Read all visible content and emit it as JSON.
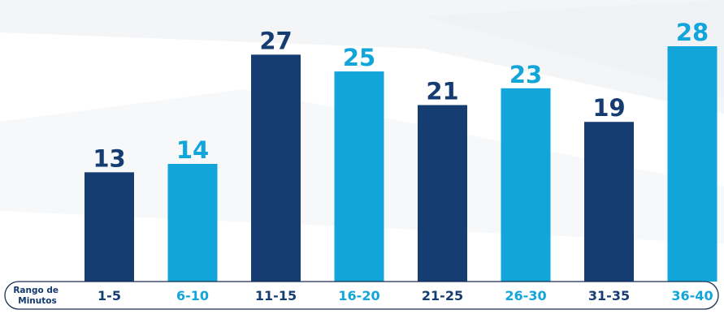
{
  "colors": {
    "dark": "#153d72",
    "light": "#12a5da",
    "background": "#ffffff",
    "pill_border": "#1a2f55"
  },
  "chart_data": {
    "type": "bar",
    "axis_title_lines": [
      "Rango de",
      "Minutos"
    ],
    "categories": [
      "1-5",
      "6-10",
      "11-15",
      "16-20",
      "21-25",
      "26-30",
      "31-35",
      "36-40"
    ],
    "values": [
      13,
      14,
      27,
      25,
      21,
      23,
      19,
      28
    ],
    "bar_colors": [
      "dark",
      "light",
      "dark",
      "light",
      "dark",
      "light",
      "dark",
      "light"
    ],
    "ylim": [
      0,
      28
    ],
    "grid": false,
    "legend": "none"
  }
}
